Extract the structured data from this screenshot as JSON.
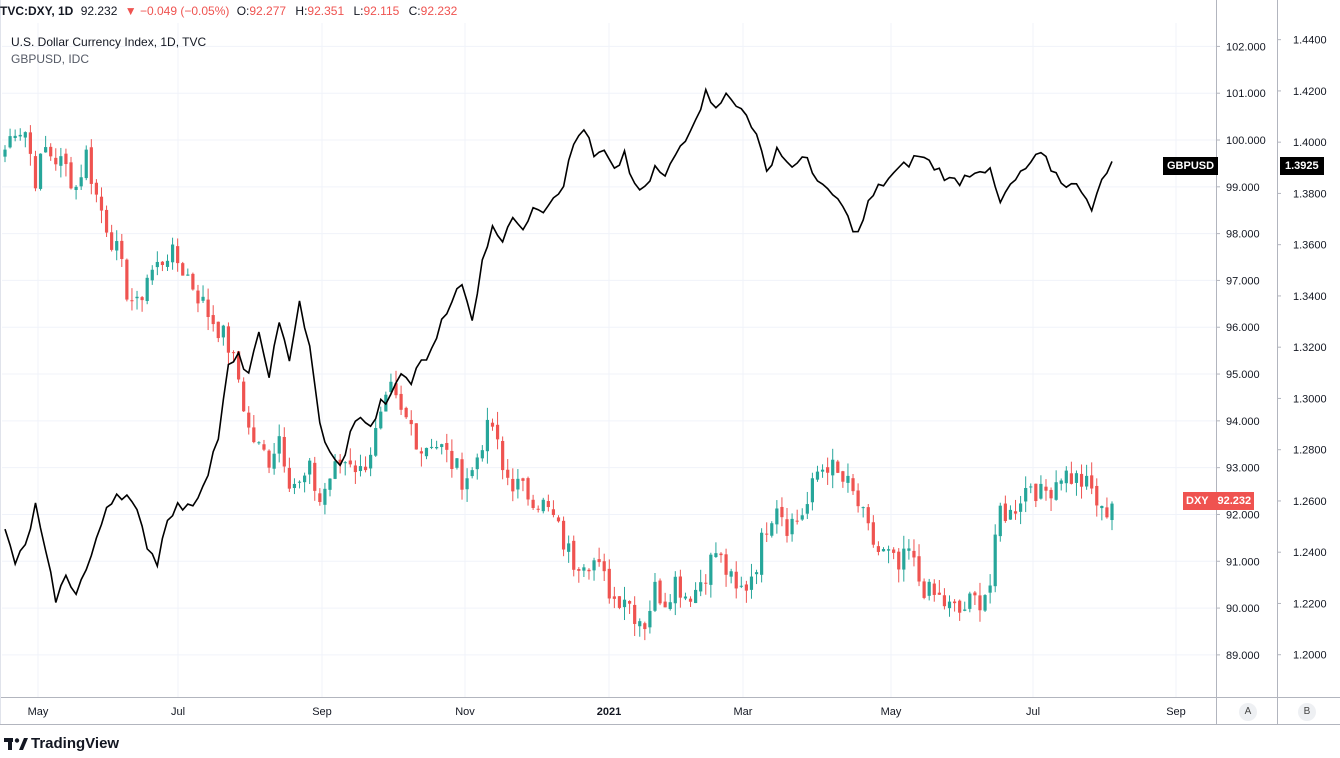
{
  "header": {
    "symbol": "TVC:DXY, 1D",
    "price": "92.232",
    "change": "▼ −0.049 (−0.05%)",
    "open_label": "O:",
    "open": "92.277",
    "high_label": "H:",
    "high": "92.351",
    "low_label": "L:",
    "low": "92.115",
    "close_label": "C:",
    "close": "92.232"
  },
  "legend": {
    "main": "U.S. Dollar Currency Index, 1D, TVC",
    "overlay": "GBPUSD, IDC"
  },
  "tags": {
    "gbpusd_label": "GBPUSD",
    "gbpusd_value": "1.3925",
    "dxy_label": "DXY",
    "dxy_value": "92.232"
  },
  "footer": {
    "brand": "TradingView"
  },
  "scale_buttons": {
    "a": "A",
    "b": "B"
  },
  "colors": {
    "up": "#26a69a",
    "down": "#ef5350",
    "line": "#000000",
    "grid": "#f0f3fa"
  },
  "chart_data": {
    "type": "line",
    "x_tick_labels": [
      "May",
      "Jul",
      "Sep",
      "Nov",
      "2021",
      "Mar",
      "May",
      "Jul",
      "Sep"
    ],
    "left_axis": {
      "ticks": []
    },
    "right_axis_dxy": {
      "ticks": [
        "102.000",
        "101.000",
        "100.000",
        "99.000",
        "98.000",
        "97.000",
        "96.000",
        "95.000",
        "94.000",
        "93.000",
        "92.000",
        "91.000",
        "90.000",
        "89.000"
      ],
      "range": [
        88.1,
        102.5
      ]
    },
    "right_axis_gbpusd": {
      "ticks": [
        "1.4400",
        "1.4200",
        "1.4000",
        "1.3800",
        "1.3600",
        "1.3400",
        "1.3200",
        "1.3000",
        "1.2800",
        "1.2600",
        "1.2400",
        "1.2200",
        "1.2000"
      ],
      "range": [
        1.1835,
        1.4465
      ]
    },
    "series": [
      {
        "name": "DXY",
        "style": "candlestick",
        "axis": "dxy",
        "close_knots": [
          [
            0,
            99.8
          ],
          [
            2,
            100.3
          ],
          [
            4,
            100.2
          ],
          [
            6,
            99.2
          ],
          [
            8,
            99.8
          ],
          [
            10,
            99.6
          ],
          [
            12,
            99.4
          ],
          [
            14,
            99.0
          ],
          [
            16,
            99.7
          ],
          [
            18,
            98.8
          ],
          [
            20,
            98.2
          ],
          [
            22,
            97.6
          ],
          [
            24,
            96.8
          ],
          [
            26,
            96.4
          ],
          [
            28,
            97.1
          ],
          [
            30,
            97.3
          ],
          [
            32,
            97.6
          ],
          [
            34,
            97.4
          ],
          [
            36,
            97.1
          ],
          [
            38,
            96.7
          ],
          [
            40,
            96.3
          ],
          [
            42,
            96.0
          ],
          [
            44,
            95.6
          ],
          [
            46,
            94.9
          ],
          [
            48,
            93.8
          ],
          [
            50,
            93.4
          ],
          [
            52,
            93.2
          ],
          [
            54,
            93.7
          ],
          [
            56,
            92.8
          ],
          [
            58,
            92.6
          ],
          [
            60,
            92.9
          ],
          [
            62,
            92.3
          ],
          [
            64,
            92.8
          ],
          [
            66,
            93.1
          ],
          [
            68,
            93.2
          ],
          [
            70,
            92.9
          ],
          [
            72,
            93.4
          ],
          [
            74,
            94.0
          ],
          [
            76,
            94.6
          ],
          [
            78,
            94.1
          ],
          [
            80,
            93.9
          ],
          [
            82,
            93.4
          ],
          [
            84,
            93.6
          ],
          [
            86,
            93.4
          ],
          [
            88,
            93.1
          ],
          [
            90,
            92.8
          ],
          [
            92,
            92.9
          ],
          [
            94,
            93.6
          ],
          [
            96,
            93.9
          ],
          [
            98,
            92.9
          ],
          [
            100,
            92.7
          ],
          [
            102,
            92.5
          ],
          [
            104,
            92.4
          ],
          [
            106,
            92.2
          ],
          [
            108,
            91.9
          ],
          [
            110,
            91.4
          ],
          [
            112,
            91.0
          ],
          [
            114,
            91.1
          ],
          [
            116,
            91.0
          ],
          [
            118,
            90.6
          ],
          [
            120,
            90.2
          ],
          [
            122,
            90.3
          ],
          [
            124,
            89.9
          ],
          [
            126,
            89.7
          ],
          [
            128,
            90.4
          ],
          [
            130,
            90.2
          ],
          [
            132,
            90.6
          ],
          [
            134,
            90.3
          ],
          [
            136,
            90.4
          ],
          [
            138,
            90.8
          ],
          [
            140,
            91.2
          ],
          [
            142,
            90.8
          ],
          [
            144,
            90.3
          ],
          [
            146,
            90.5
          ],
          [
            148,
            91.0
          ],
          [
            150,
            91.8
          ],
          [
            152,
            92.3
          ],
          [
            154,
            91.8
          ],
          [
            156,
            91.9
          ],
          [
            158,
            92.2
          ],
          [
            160,
            92.9
          ],
          [
            162,
            93.1
          ],
          [
            164,
            92.8
          ],
          [
            166,
            92.6
          ],
          [
            168,
            92.2
          ],
          [
            170,
            91.6
          ],
          [
            172,
            91.2
          ],
          [
            174,
            91.1
          ],
          [
            176,
            90.8
          ],
          [
            178,
            91.2
          ],
          [
            180,
            90.6
          ],
          [
            182,
            90.3
          ],
          [
            184,
            90.2
          ],
          [
            186,
            90.0
          ],
          [
            188,
            89.9
          ],
          [
            190,
            90.1
          ],
          [
            192,
            90.2
          ],
          [
            194,
            90.5
          ],
          [
            196,
            92.1
          ],
          [
            198,
            92.0
          ],
          [
            200,
            92.4
          ],
          [
            202,
            92.7
          ],
          [
            204,
            92.4
          ],
          [
            206,
            92.6
          ],
          [
            208,
            92.9
          ],
          [
            210,
            92.8
          ],
          [
            212,
            92.7
          ],
          [
            214,
            92.5
          ],
          [
            216,
            92.0
          ],
          [
            218,
            92.232
          ]
        ]
      },
      {
        "name": "GBPUSD",
        "style": "line",
        "axis": "gbpusd",
        "knots": [
          [
            0,
            1.248
          ],
          [
            2,
            1.236
          ],
          [
            4,
            1.242
          ],
          [
            6,
            1.258
          ],
          [
            8,
            1.239
          ],
          [
            10,
            1.222
          ],
          [
            12,
            1.23
          ],
          [
            14,
            1.225
          ],
          [
            16,
            1.233
          ],
          [
            18,
            1.244
          ],
          [
            20,
            1.258
          ],
          [
            22,
            1.263
          ],
          [
            24,
            1.262
          ],
          [
            26,
            1.255
          ],
          [
            28,
            1.243
          ],
          [
            30,
            1.236
          ],
          [
            32,
            1.254
          ],
          [
            34,
            1.258
          ],
          [
            36,
            1.257
          ],
          [
            38,
            1.262
          ],
          [
            40,
            1.272
          ],
          [
            42,
            1.285
          ],
          [
            44,
            1.312
          ],
          [
            46,
            1.316
          ],
          [
            48,
            1.31
          ],
          [
            50,
            1.324
          ],
          [
            52,
            1.31
          ],
          [
            54,
            1.328
          ],
          [
            56,
            1.316
          ],
          [
            58,
            1.338
          ],
          [
            60,
            1.319
          ],
          [
            62,
            1.29
          ],
          [
            64,
            1.278
          ],
          [
            66,
            1.273
          ],
          [
            68,
            1.286
          ],
          [
            70,
            1.294
          ],
          [
            72,
            1.288
          ],
          [
            74,
            1.298
          ],
          [
            76,
            1.3
          ],
          [
            78,
            1.31
          ],
          [
            80,
            1.306
          ],
          [
            82,
            1.315
          ],
          [
            84,
            1.318
          ],
          [
            86,
            1.331
          ],
          [
            88,
            1.339
          ],
          [
            90,
            1.344
          ],
          [
            92,
            1.33
          ],
          [
            94,
            1.355
          ],
          [
            96,
            1.366
          ],
          [
            98,
            1.363
          ],
          [
            100,
            1.372
          ],
          [
            102,
            1.364
          ],
          [
            104,
            1.376
          ],
          [
            106,
            1.374
          ],
          [
            108,
            1.379
          ],
          [
            110,
            1.384
          ],
          [
            112,
            1.399
          ],
          [
            114,
            1.406
          ],
          [
            116,
            1.394
          ],
          [
            118,
            1.396
          ],
          [
            120,
            1.388
          ],
          [
            122,
            1.396
          ],
          [
            124,
            1.382
          ],
          [
            126,
            1.381
          ],
          [
            128,
            1.39
          ],
          [
            130,
            1.386
          ],
          [
            132,
            1.395
          ],
          [
            134,
            1.402
          ],
          [
            136,
            1.41
          ],
          [
            138,
            1.419
          ],
          [
            140,
            1.415
          ],
          [
            142,
            1.418
          ],
          [
            144,
            1.414
          ],
          [
            146,
            1.412
          ],
          [
            148,
            1.402
          ],
          [
            150,
            1.388
          ],
          [
            152,
            1.398
          ],
          [
            154,
            1.392
          ],
          [
            156,
            1.391
          ],
          [
            158,
            1.394
          ],
          [
            160,
            1.385
          ],
          [
            162,
            1.38
          ],
          [
            164,
            1.378
          ],
          [
            166,
            1.37
          ],
          [
            168,
            1.364
          ],
          [
            170,
            1.376
          ],
          [
            172,
            1.382
          ],
          [
            174,
            1.386
          ],
          [
            176,
            1.389
          ],
          [
            178,
            1.392
          ],
          [
            180,
            1.395
          ],
          [
            182,
            1.392
          ],
          [
            184,
            1.389
          ],
          [
            186,
            1.385
          ],
          [
            188,
            1.385
          ],
          [
            190,
            1.388
          ],
          [
            192,
            1.39
          ],
          [
            194,
            1.388
          ],
          [
            196,
            1.376
          ],
          [
            198,
            1.383
          ],
          [
            200,
            1.387
          ],
          [
            202,
            1.392
          ],
          [
            204,
            1.395
          ],
          [
            206,
            1.39
          ],
          [
            208,
            1.385
          ],
          [
            210,
            1.383
          ],
          [
            212,
            1.382
          ],
          [
            214,
            1.375
          ],
          [
            216,
            1.384
          ],
          [
            218,
            1.3925
          ]
        ]
      }
    ],
    "grid": true
  }
}
